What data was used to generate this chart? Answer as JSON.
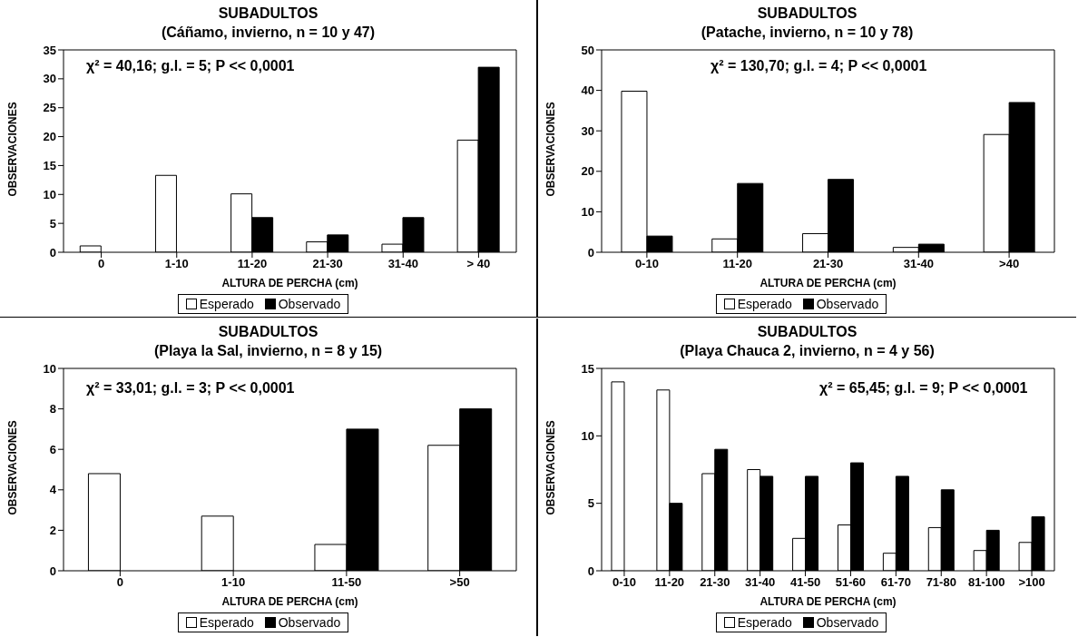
{
  "chart_data": [
    {
      "type": "bar",
      "title": "SUBADULTOS",
      "subtitle": "(Cáñamo, invierno, n = 10 y 47)",
      "xlabel": "ALTURA DE PERCHA (cm)",
      "ylabel": "OBSERVACIONES",
      "categories": [
        "0",
        "1-10",
        "11-20",
        "21-30",
        "31-40",
        "> 40"
      ],
      "series": [
        {
          "name": "Esperado",
          "color": "#ffffff",
          "values": [
            1.1,
            13.3,
            10.1,
            1.8,
            1.4,
            19.4
          ]
        },
        {
          "name": "Observado",
          "color": "#000000",
          "values": [
            0,
            0,
            6,
            3,
            6,
            32
          ]
        }
      ],
      "ylim": [
        0,
        35
      ],
      "yticks": [
        0,
        5,
        10,
        15,
        20,
        25,
        30,
        35
      ],
      "grid": false,
      "legend": "bottom",
      "annotations": [
        "χ² = 40,16; g.l. = 5; P << 0,0001"
      ]
    },
    {
      "type": "bar",
      "title": "SUBADULTOS",
      "subtitle": "(Patache, invierno, n = 10 y 78)",
      "xlabel": "ALTURA DE PERCHA (cm)",
      "ylabel": "OBSERVACIONES",
      "categories": [
        "0-10",
        "11-20",
        "21-30",
        "31-40",
        ">40"
      ],
      "series": [
        {
          "name": "Esperado",
          "color": "#ffffff",
          "values": [
            39.8,
            3.3,
            4.6,
            1.2,
            29.1
          ]
        },
        {
          "name": "Observado",
          "color": "#000000",
          "values": [
            4,
            17,
            18,
            2,
            37
          ]
        }
      ],
      "ylim": [
        0,
        50
      ],
      "yticks": [
        0,
        10,
        20,
        30,
        40,
        50
      ],
      "grid": false,
      "legend": "bottom",
      "annotations": [
        "χ² = 130,70; g.l. = 4; P << 0,0001"
      ]
    },
    {
      "type": "bar",
      "title": "SUBADULTOS",
      "subtitle": "(Playa la Sal, invierno, n = 8 y 15)",
      "xlabel": "ALTURA DE PERCHA (cm)",
      "ylabel": "OBSERVACIONES",
      "categories": [
        "0",
        "1-10",
        "11-50",
        ">50"
      ],
      "series": [
        {
          "name": "Esperado",
          "color": "#ffffff",
          "values": [
            4.8,
            2.7,
            1.3,
            6.2
          ]
        },
        {
          "name": "Observado",
          "color": "#000000",
          "values": [
            0,
            0,
            7,
            8
          ]
        }
      ],
      "ylim": [
        0,
        10
      ],
      "yticks": [
        0,
        2,
        4,
        6,
        8,
        10
      ],
      "grid": false,
      "legend": "bottom",
      "annotations": [
        "χ² = 33,01; g.l. = 3; P << 0,0001"
      ]
    },
    {
      "type": "bar",
      "title": "SUBADULTOS",
      "subtitle": "(Playa Chauca 2, invierno, n = 4 y 56)",
      "xlabel": "ALTURA DE PERCHA (cm)",
      "ylabel": "OBSERVACIONES",
      "categories": [
        "0-10",
        "11-20",
        "21-30",
        "31-40",
        "41-50",
        "51-60",
        "61-70",
        "71-80",
        "81-100",
        ">100"
      ],
      "series": [
        {
          "name": "Esperado",
          "color": "#ffffff",
          "values": [
            14.0,
            13.4,
            7.2,
            7.5,
            2.4,
            3.4,
            1.3,
            3.2,
            1.5,
            2.1
          ]
        },
        {
          "name": "Observado",
          "color": "#000000",
          "values": [
            0,
            5,
            9,
            7,
            7,
            8,
            7,
            6,
            3,
            4
          ]
        }
      ],
      "ylim": [
        0,
        15
      ],
      "yticks": [
        0,
        5,
        10,
        15
      ],
      "grid": false,
      "legend": "bottom",
      "annotations": [
        "χ² = 65,45; g.l. = 9; P << 0,0001"
      ]
    }
  ]
}
